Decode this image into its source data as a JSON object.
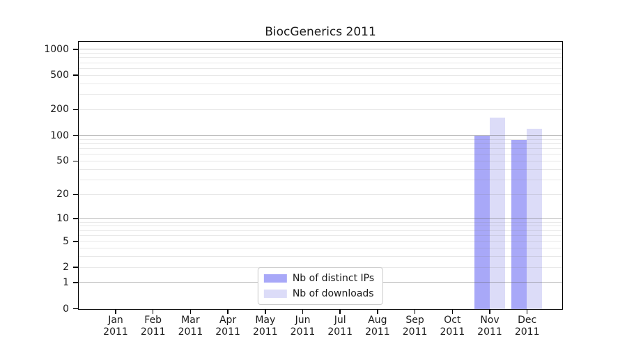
{
  "title": "BiocGenerics 2011",
  "colors": {
    "distinct_ips_bar": "#a8a8f8",
    "downloads_bar": "#dcdcf8",
    "axis": "#000000",
    "grid_minor": "#e9e9e9",
    "grid_major": "#b6b6b6",
    "legend_border": "#cccccc"
  },
  "chart_data": {
    "type": "bar",
    "title": "BiocGenerics 2011",
    "x": [
      "Jan 2011",
      "Feb 2011",
      "Mar 2011",
      "Apr 2011",
      "May 2011",
      "Jun 2011",
      "Jul 2011",
      "Aug 2011",
      "Sep 2011",
      "Oct 2011",
      "Nov 2011",
      "Dec 2011"
    ],
    "series": [
      {
        "name": "Nb of distinct IPs",
        "key": "ips",
        "color": "#a8a8f8",
        "values": [
          0,
          0,
          0,
          0,
          0,
          0,
          0,
          0,
          0,
          0,
          100,
          90
        ]
      },
      {
        "name": "Nb of downloads",
        "key": "downloads",
        "color": "#dcdcf8",
        "values": [
          0,
          0,
          0,
          0,
          0,
          0,
          0,
          0,
          0,
          0,
          163,
          120
        ]
      }
    ],
    "y_ticks": [
      0,
      1,
      2,
      5,
      10,
      20,
      50,
      100,
      200,
      500,
      1000
    ],
    "y_scale": "log10(1+y)",
    "ylim": [
      0,
      1200
    ],
    "grid": "horizontal minor lines at 2-9 per decade, darker lines at 1,10,100,1000",
    "legend_position": "lower center",
    "legend_labels": [
      "Nb of distinct IPs",
      "Nb of downloads"
    ]
  }
}
